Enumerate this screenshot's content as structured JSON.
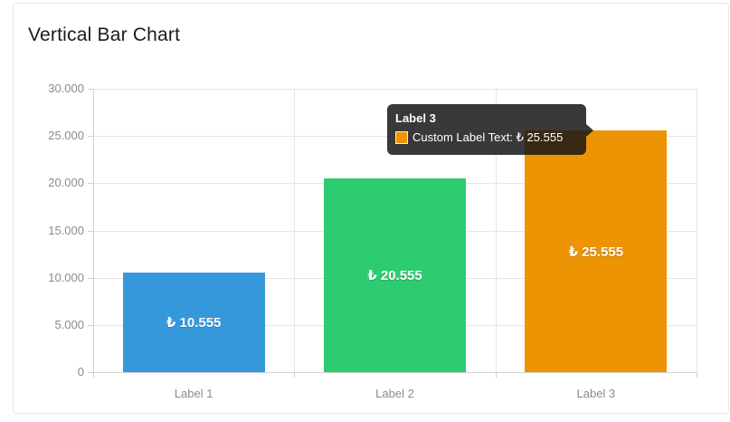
{
  "card": {
    "title": "Vertical Bar Chart",
    "border_color": "#e8e8e8"
  },
  "chart_data": {
    "type": "bar",
    "title": "Vertical Bar Chart",
    "categories": [
      "Label 1",
      "Label 2",
      "Label 3"
    ],
    "values": [
      10555,
      20555,
      25555
    ],
    "display_values": [
      "₺ 10.555",
      "₺ 20.555",
      "₺ 25.555"
    ],
    "bar_colors": [
      "#3598db",
      "#2ecc71",
      "#ed9405"
    ],
    "xlabel": "",
    "ylabel": "",
    "ylim": [
      0,
      30000
    ],
    "y_ticks": [
      0,
      5000,
      10000,
      15000,
      20000,
      25000,
      30000
    ],
    "y_tick_labels": [
      "0",
      "5.000",
      "10.000",
      "15.000",
      "20.000",
      "25.000",
      "30.000"
    ],
    "grid": "on",
    "legend": "none",
    "value_label_color": "#ffffff",
    "tick_label_color": "#8b8b8b"
  },
  "tooltip": {
    "title": "Label 3",
    "label": "Custom Label Text: ₺ 25.555",
    "swatch_color": "#ed9405",
    "bg": "rgba(22,22,22,0.85)"
  }
}
